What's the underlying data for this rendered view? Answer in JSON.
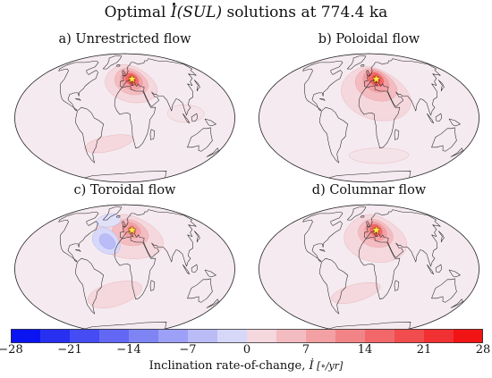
{
  "title": {
    "prefix": "Optimal ",
    "symbol": "I",
    "arg": "(SUL)",
    "suffix": " solutions at 774.4 ka"
  },
  "panels": [
    {
      "label": "a) Unrestricted flow",
      "mode": "unrestricted"
    },
    {
      "label": "b) Poloidal flow",
      "mode": "poloidal"
    },
    {
      "label": "c) Toroidal flow",
      "mode": "toroidal"
    },
    {
      "label": "d) Columnar flow",
      "mode": "columnar"
    }
  ],
  "colorbar": {
    "ticks": [
      "−28",
      "−21",
      "−14",
      "−7",
      "0",
      "7",
      "14",
      "21",
      "28"
    ],
    "min": -28,
    "max": 28,
    "levels": 16,
    "negative_color": "#0a14f0",
    "positive_color": "#f01414",
    "label_text": "Inclination rate-of-change, ",
    "label_symbol": "İ",
    "label_unit": " [∘/yr]"
  },
  "site_marker": {
    "name": "star",
    "color": "#ffe64b"
  }
}
